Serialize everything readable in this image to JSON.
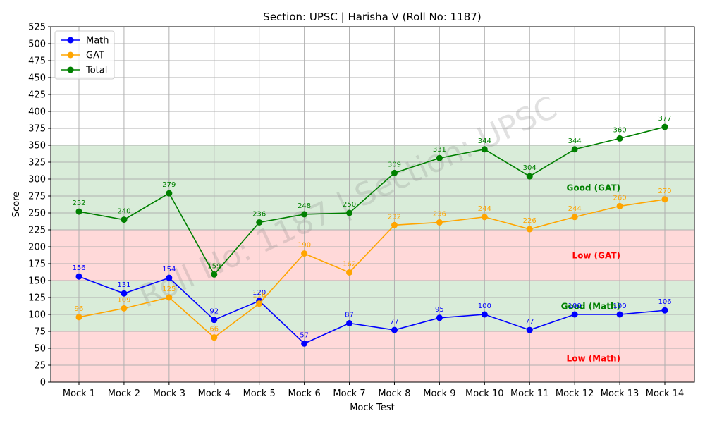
{
  "chart_data": {
    "type": "line",
    "title": "Section: UPSC | Harisha V (Roll No: 1187)",
    "xlabel": "Mock Test",
    "ylabel": "Score",
    "ylim": [
      0,
      525
    ],
    "yticks": [
      0,
      25,
      50,
      75,
      100,
      125,
      150,
      175,
      200,
      225,
      250,
      275,
      300,
      325,
      350,
      375,
      400,
      425,
      450,
      475,
      500,
      525
    ],
    "grid": true,
    "legend_position": "top-left",
    "categories": [
      "Mock 1",
      "Mock 2",
      "Mock 3",
      "Mock 4",
      "Mock 5",
      "Mock 6",
      "Mock 7",
      "Mock 8",
      "Mock 9",
      "Mock 10",
      "Mock 11",
      "Mock 12",
      "Mock 13",
      "Mock 14"
    ],
    "series": [
      {
        "name": "Math",
        "color": "#0000ff",
        "values": [
          156,
          131,
          154,
          92,
          120,
          57,
          87,
          77,
          95,
          100,
          77,
          100,
          100,
          106
        ]
      },
      {
        "name": "GAT",
        "color": "#ffa500",
        "values": [
          96,
          109,
          125,
          66,
          116,
          190,
          162,
          232,
          236,
          244,
          226,
          244,
          260,
          270
        ]
      },
      {
        "name": "Total",
        "color": "#008000",
        "values": [
          252,
          240,
          279,
          159,
          236,
          248,
          250,
          309,
          331,
          344,
          304,
          344,
          360,
          377
        ]
      }
    ],
    "bands": [
      {
        "from": 0,
        "to": 75,
        "color": "#ffd9d9",
        "label": "Low (Math)",
        "label_color": "#ff0000",
        "label_y": 35
      },
      {
        "from": 75,
        "to": 150,
        "color": "#d9ecd9",
        "label": "Good (Math)",
        "label_color": "#008000",
        "label_y": 112
      },
      {
        "from": 150,
        "to": 225,
        "color": "#ffd9d9",
        "label": "Low (GAT)",
        "label_color": "#ff0000",
        "label_y": 187
      },
      {
        "from": 225,
        "to": 350,
        "color": "#d9ecd9",
        "label": "Good (GAT)",
        "label_color": "#008000",
        "label_y": 287
      }
    ],
    "watermark": "Roll No: 1187 | Section: UPSC"
  }
}
